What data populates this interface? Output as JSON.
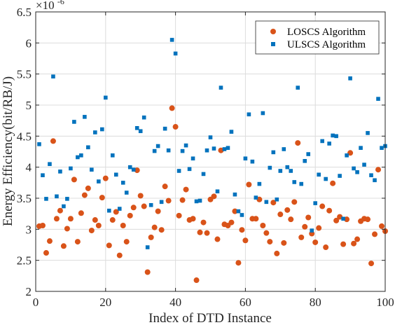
{
  "chart_data": {
    "type": "scatter",
    "xlabel": "Index of DTD Instance",
    "ylabel": "Energy Efficiency(bit/RB/J)",
    "y_multiplier_label": {
      "base": "×10",
      "exponent": "-6"
    },
    "xlim": [
      0,
      100
    ],
    "ylim": [
      2,
      6.5
    ],
    "x_ticks": [
      0,
      20,
      40,
      60,
      80,
      100
    ],
    "x_tick_labels": [
      "0",
      "20",
      "40",
      "60",
      "80",
      "100"
    ],
    "y_ticks": [
      2,
      2.5,
      3,
      3.5,
      4,
      4.5,
      5,
      5.5,
      6,
      6.5
    ],
    "y_tick_labels": [
      "2",
      "2.5",
      "3",
      "3.5",
      "4",
      "4.5",
      "5",
      "5.5",
      "6",
      "6.5"
    ],
    "grid": true,
    "legend_position": "top-right",
    "series": [
      {
        "name": "LOSCS Algorithm",
        "color": "#D95319",
        "marker": "circle",
        "x": [
          1,
          2,
          3,
          4,
          5,
          6,
          7,
          8,
          9,
          10,
          11,
          12,
          13,
          14,
          15,
          16,
          17,
          18,
          19,
          20,
          21,
          22,
          23,
          24,
          25,
          26,
          27,
          28,
          29,
          30,
          31,
          32,
          33,
          34,
          35,
          36,
          37,
          38,
          39,
          40,
          41,
          42,
          43,
          44,
          45,
          46,
          47,
          48,
          49,
          50,
          51,
          52,
          53,
          54,
          55,
          56,
          57,
          58,
          59,
          60,
          61,
          62,
          63,
          64,
          65,
          66,
          67,
          68,
          69,
          70,
          71,
          72,
          73,
          74,
          75,
          76,
          77,
          78,
          79,
          80,
          81,
          82,
          83,
          84,
          85,
          86,
          87,
          88,
          89,
          90,
          91,
          92,
          93,
          94,
          95,
          96,
          97,
          98,
          99,
          100
        ],
        "y": [
          3.05,
          3.06,
          2.62,
          2.81,
          4.42,
          3.17,
          3.3,
          2.73,
          3.01,
          3.17,
          3.8,
          2.8,
          3.26,
          3.55,
          3.66,
          2.98,
          3.15,
          3.06,
          3.51,
          3.82,
          2.74,
          3.15,
          3.28,
          2.58,
          3.06,
          2.8,
          3.22,
          3.35,
          3.95,
          3.54,
          3.37,
          2.31,
          2.87,
          3.03,
          3.29,
          2.99,
          3.69,
          3.46,
          4.95,
          4.65,
          3.22,
          3.47,
          3.64,
          3.15,
          3.17,
          2.18,
          2.95,
          3.11,
          2.94,
          3.48,
          3.53,
          2.84,
          4.27,
          3.08,
          3.06,
          3.11,
          3.29,
          2.46,
          2.99,
          2.82,
          3.72,
          3.17,
          3.17,
          3.48,
          3.06,
          2.94,
          2.8,
          3.43,
          2.61,
          3.24,
          2.78,
          3.31,
          3.16,
          3.44,
          4.39,
          2.87,
          3.04,
          3.19,
          2.93,
          2.79,
          3.02,
          3.37,
          2.71,
          3.3,
          3.74,
          3.14,
          3.2,
          2.76,
          3.16,
          4.23,
          2.77,
          2.84,
          3.13,
          3.17,
          3.16,
          2.45,
          2.92,
          3.96,
          3.05,
          2.97
        ]
      },
      {
        "name": "ULSCS Algorithm",
        "color": "#0072BD",
        "marker": "square",
        "x": [
          1,
          2,
          3,
          4,
          5,
          6,
          7,
          8,
          9,
          10,
          11,
          12,
          13,
          14,
          15,
          16,
          17,
          18,
          19,
          20,
          21,
          22,
          23,
          24,
          25,
          26,
          27,
          28,
          29,
          30,
          31,
          32,
          33,
          34,
          35,
          36,
          37,
          38,
          39,
          40,
          41,
          42,
          43,
          44,
          45,
          46,
          47,
          48,
          49,
          50,
          51,
          52,
          53,
          54,
          55,
          56,
          57,
          58,
          59,
          60,
          61,
          62,
          63,
          64,
          65,
          66,
          67,
          68,
          69,
          70,
          71,
          72,
          73,
          74,
          75,
          76,
          77,
          78,
          79,
          80,
          81,
          82,
          83,
          84,
          85,
          86,
          87,
          88,
          89,
          90,
          91,
          92,
          93,
          94,
          95,
          96,
          97,
          98,
          99,
          100
        ],
        "y": [
          4.37,
          3.87,
          3.49,
          4.05,
          5.46,
          3.53,
          3.93,
          3.37,
          3.49,
          3.98,
          4.73,
          4.16,
          4.19,
          4.81,
          4.32,
          3.96,
          4.56,
          3.77,
          4.61,
          5.12,
          3.3,
          4.19,
          3.88,
          3.33,
          3.75,
          3.59,
          4.0,
          3.96,
          4.63,
          4.58,
          4.8,
          2.71,
          3.39,
          4.26,
          4.34,
          3.44,
          4.62,
          4.27,
          6.05,
          5.83,
          3.94,
          4.26,
          4.35,
          3.97,
          4.14,
          3.45,
          3.46,
          3.89,
          4.27,
          4.48,
          4.3,
          3.61,
          5.28,
          4.29,
          4.31,
          4.57,
          3.56,
          3.29,
          3.23,
          4.14,
          4.85,
          4.09,
          3.51,
          3.73,
          4.87,
          3.44,
          3.99,
          4.24,
          3.48,
          3.94,
          4.29,
          4.0,
          3.94,
          3.76,
          5.28,
          3.73,
          4.1,
          4.21,
          2.98,
          3.42,
          3.88,
          4.42,
          3.81,
          4.38,
          4.51,
          4.5,
          3.86,
          3.17,
          4.19,
          5.43,
          3.98,
          3.92,
          4.31,
          4.04,
          4.55,
          3.87,
          3.79,
          5.1,
          4.31,
          4.34
        ]
      }
    ]
  }
}
